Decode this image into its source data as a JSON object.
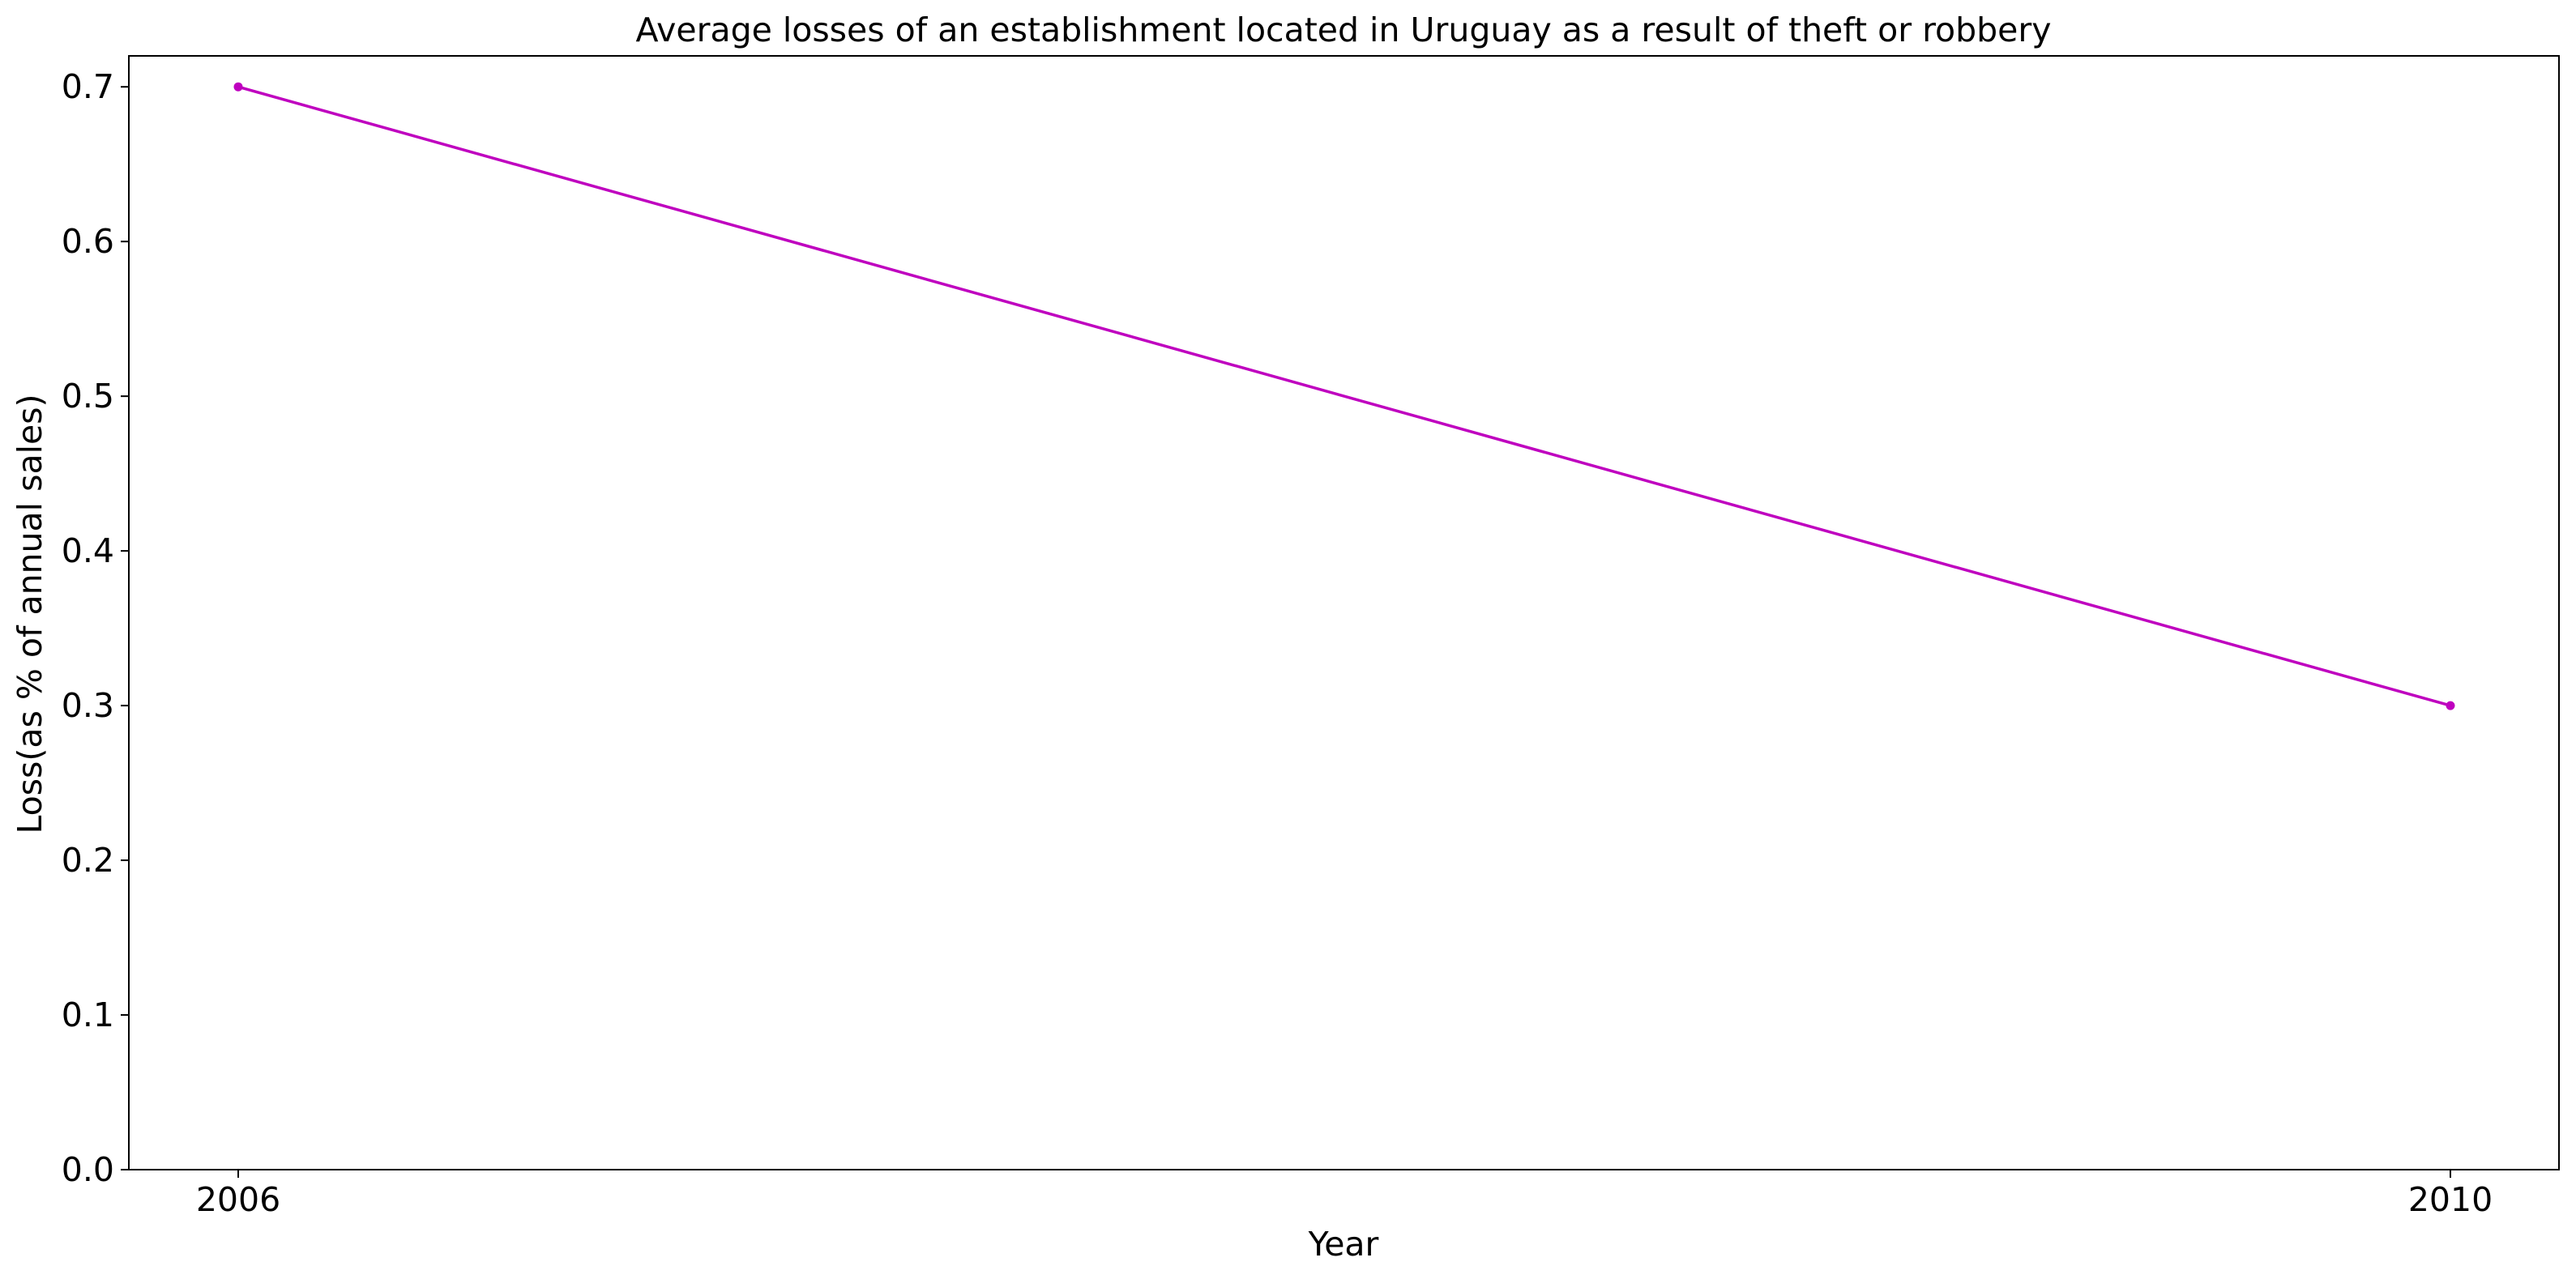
{
  "chart_data": {
    "type": "line",
    "title": "Average losses of an establishment located in Uruguay as a result of theft or robbery",
    "xlabel": "Year",
    "ylabel": "Loss(as % of annual sales)",
    "x": [
      "2006",
      "2010"
    ],
    "series": [
      {
        "values": [
          0.7,
          0.3
        ],
        "color": "#bf00bf"
      }
    ],
    "ylim": [
      0,
      0.72
    ],
    "yticks": [
      "0.0",
      "0.1",
      "0.2",
      "0.3",
      "0.4",
      "0.5",
      "0.6",
      "0.7"
    ],
    "xticks": [
      "2006",
      "2010"
    ],
    "grid": false,
    "legend": "none"
  }
}
